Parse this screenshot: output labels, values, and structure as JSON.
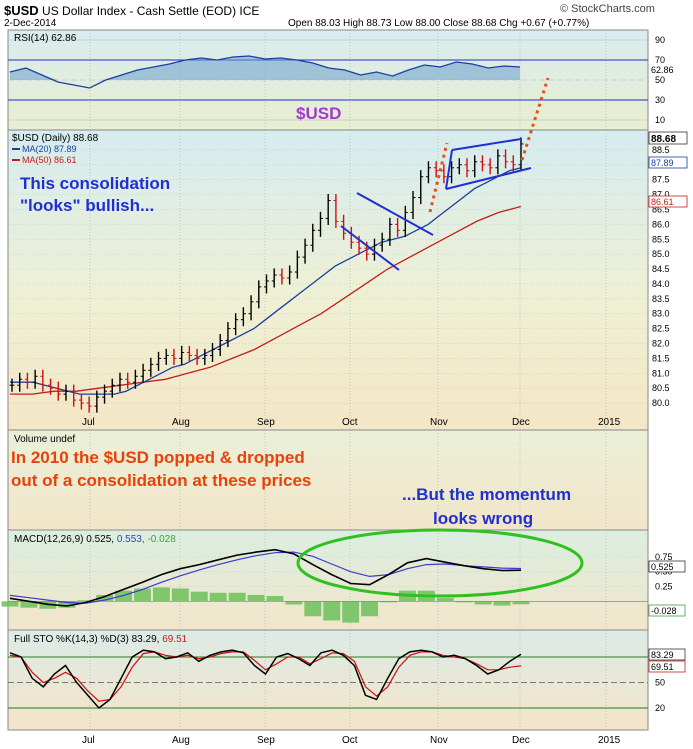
{
  "header": {
    "symbol": "$USD",
    "name": "US Dollar Index - Cash Settle (EOD) ICE",
    "date": "2-Dec-2014",
    "ohlc": "Open 88.03  High 88.73  Low 88.00  Close 88.68  Chg +0.67 (+0.77%)",
    "brand": "© StockCharts.com"
  },
  "panels": {
    "rsi_label": "RSI(14) 62.86",
    "rsi_last": "62.86",
    "price_title": "$USD",
    "price_legend": "$USD (Daily) 88.68",
    "ma20_label": "MA(20) 87.89",
    "ma50_label": "MA(50) 86.61",
    "last_price": "88.68",
    "last_ma20": "87.89",
    "last_ma50": "86.61",
    "volume_label": "Volume undef",
    "macd_label": "MACD(12,26,9) 0.525,",
    "macd_signal": "0.553,",
    "macd_hist": "-0.028",
    "macd_last": "0.525",
    "macd_hist_last": "-0.028",
    "sto_label": "Full STO %K(14,3) %D(3) 83.29,",
    "sto_d": "69.51",
    "sto_k_last": "83.29",
    "sto_d_last": "69.51"
  },
  "annotations": {
    "consolidation_1": "This consolidation",
    "consolidation_2": "\"looks\" bullish...",
    "popped_1": "In 2010 the $USD  popped & dropped",
    "popped_2": "out of a consolidation at these prices",
    "momentum_1": "...But the momentum",
    "momentum_2": "looks wrong"
  },
  "colors": {
    "panel_bg": "#eef2d6",
    "ma20": "#1a3fa0",
    "ma50": "#c0201a",
    "annotation_blue": "#1f2fd0",
    "annotation_orange": "#e8420a",
    "price_title": "#a03ad0",
    "ellipse": "#2fc11f",
    "breakout": "#e2521a"
  },
  "chart_data": {
    "type": "line",
    "x_ticks": [
      "Jul",
      "Aug",
      "Sep",
      "Oct",
      "Nov",
      "Dec",
      "2015"
    ],
    "price": {
      "ylim": [
        79.6,
        89.0
      ],
      "y_ticks": [
        "80.0",
        "80.5",
        "81.0",
        "81.5",
        "82.0",
        "82.5",
        "83.0",
        "83.5",
        "84.0",
        "84.5",
        "85.0",
        "85.5",
        "86.0",
        "86.5",
        "87.0",
        "87.5",
        "88.0",
        "88.5"
      ],
      "series": [
        {
          "name": "$USD",
          "values": [
            80.6,
            80.8,
            80.7,
            80.9,
            80.6,
            80.5,
            80.3,
            80.4,
            80.1,
            80.0,
            79.9,
            80.2,
            80.4,
            80.6,
            80.8,
            80.7,
            80.9,
            81.1,
            81.3,
            81.5,
            81.6,
            81.5,
            81.7,
            81.6,
            81.5,
            81.6,
            81.8,
            82.1,
            82.5,
            82.8,
            83.0,
            83.4,
            83.9,
            84.1,
            84.3,
            84.2,
            84.4,
            84.9,
            85.3,
            85.8,
            86.2,
            86.8,
            86.1,
            85.7,
            85.4,
            85.2,
            85.0,
            85.3,
            85.5,
            86.0,
            85.8,
            86.4,
            86.9,
            87.6,
            87.9,
            87.8,
            87.6,
            87.9,
            88.0,
            87.8,
            88.1,
            88.0,
            87.9,
            88.3,
            88.1,
            88.0,
            88.7
          ]
        },
        {
          "name": "MA(20)",
          "values": [
            80.7,
            80.7,
            80.7,
            80.6,
            80.5,
            80.4,
            80.3,
            80.3,
            80.3,
            80.3,
            80.4,
            80.6,
            80.8,
            81.0,
            81.2,
            81.3,
            81.5,
            81.7,
            81.9,
            82.1,
            82.3,
            82.5,
            82.8,
            83.1,
            83.4,
            83.7,
            84.0,
            84.3,
            84.6,
            84.8,
            85.0,
            85.2,
            85.4,
            85.5,
            85.6,
            85.8,
            86.0,
            86.3,
            86.6,
            86.9,
            87.2,
            87.4,
            87.6,
            87.8,
            87.9
          ]
        },
        {
          "name": "MA(50)",
          "values": [
            80.3,
            80.3,
            80.4,
            80.4,
            80.5,
            80.6,
            80.7,
            80.8,
            81.0,
            81.2,
            81.5,
            81.8,
            82.2,
            82.6,
            83.0,
            83.5,
            84.0,
            84.5,
            84.9,
            85.3,
            85.7,
            86.1,
            86.4,
            86.6
          ]
        }
      ]
    },
    "rsi": {
      "ylim": [
        0,
        100
      ],
      "y_ticks": [
        "10",
        "30",
        "50",
        "70",
        "90"
      ],
      "values": [
        58,
        62,
        55,
        48,
        45,
        42,
        50,
        55,
        60,
        63,
        66,
        70,
        72,
        70,
        73,
        74,
        71,
        72,
        70,
        67,
        62,
        60,
        55,
        58,
        54,
        60,
        65,
        63,
        68,
        66,
        62,
        64,
        63
      ]
    },
    "macd": {
      "y_ticks": [
        "0.25",
        "0.50",
        "0.75"
      ],
      "macd": [
        0.05,
        0.0,
        -0.05,
        -0.08,
        -0.02,
        0.08,
        0.2,
        0.32,
        0.45,
        0.55,
        0.62,
        0.7,
        0.78,
        0.83,
        0.87,
        0.8,
        0.62,
        0.45,
        0.3,
        0.28,
        0.45,
        0.65,
        0.72,
        0.66,
        0.6,
        0.55,
        0.52,
        0.525
      ],
      "signal": [
        0.1,
        0.06,
        0.02,
        -0.02,
        -0.03,
        0.02,
        0.1,
        0.2,
        0.32,
        0.43,
        0.53,
        0.62,
        0.7,
        0.77,
        0.82,
        0.83,
        0.76,
        0.63,
        0.5,
        0.42,
        0.45,
        0.55,
        0.62,
        0.63,
        0.6,
        0.58,
        0.56,
        0.553
      ]
    },
    "stochastic": {
      "y_ticks": [
        "20",
        "50",
        "80"
      ],
      "k": [
        85,
        80,
        55,
        45,
        60,
        70,
        50,
        35,
        20,
        30,
        55,
        80,
        88,
        86,
        78,
        80,
        85,
        75,
        82,
        86,
        88,
        85,
        70,
        60,
        80,
        84,
        78,
        70,
        85,
        88,
        82,
        70,
        35,
        30,
        55,
        78,
        86,
        88,
        86,
        80,
        82,
        78,
        70,
        60,
        65,
        75,
        83.29
      ],
      "d": [
        82,
        80,
        62,
        50,
        55,
        62,
        55,
        40,
        28,
        30,
        45,
        68,
        84,
        86,
        82,
        80,
        82,
        78,
        80,
        84,
        86,
        86,
        76,
        65,
        72,
        80,
        80,
        72,
        78,
        85,
        84,
        75,
        45,
        34,
        45,
        68,
        82,
        86,
        86,
        82,
        80,
        78,
        72,
        65,
        65,
        68,
        69.51
      ]
    }
  }
}
